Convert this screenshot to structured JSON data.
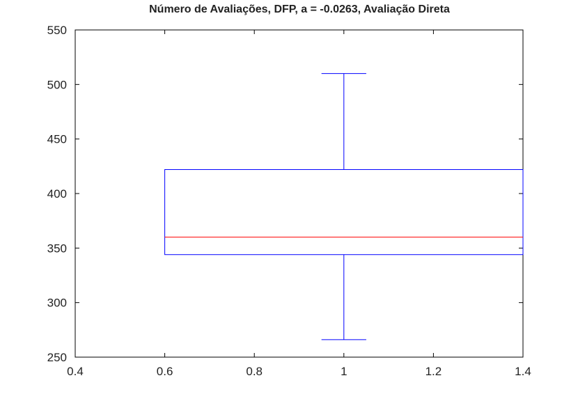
{
  "chart_data": {
    "type": "box",
    "title": "Número de Avaliações, DFP, a = -0.0263, Avaliação Direta",
    "xlim": [
      0.4,
      1.4
    ],
    "ylim": [
      250,
      550
    ],
    "xticks": [
      "0.4",
      "0.6",
      "0.8",
      "1",
      "1.2",
      "1.4"
    ],
    "yticks": [
      "250",
      "300",
      "350",
      "400",
      "450",
      "500",
      "550"
    ],
    "grid": false,
    "box": {
      "x": 1,
      "box_left": 0.6,
      "box_right": 1.4,
      "whisker_cap_left": 0.95,
      "whisker_cap_right": 1.05,
      "whisker_low": 266,
      "q1": 344,
      "median": 360,
      "q3": 422,
      "whisker_high": 510
    },
    "colors": {
      "box": "#0000ff",
      "median": "#ff0000",
      "axes": "#000000"
    }
  }
}
